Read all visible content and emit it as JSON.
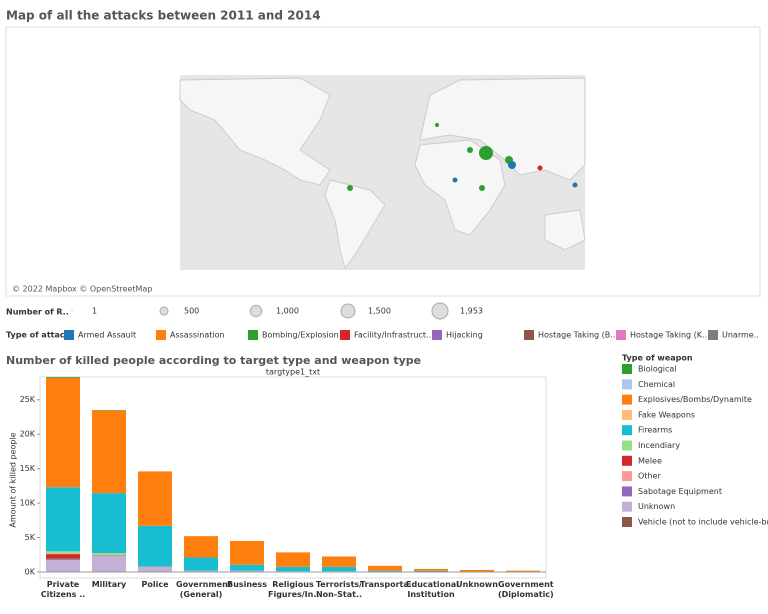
{
  "map": {
    "title": "Map of all the attacks between 2011 and 2014",
    "attribution": "© 2022 Mapbox © OpenStreetMap",
    "size_legend": {
      "label": "Number of R..",
      "values": [
        1,
        500,
        1000,
        1500,
        1953
      ],
      "value_labels": [
        "1",
        "500",
        "1,000",
        "1,500",
        "1,953"
      ]
    },
    "color_legend": {
      "label": "Type of attack",
      "items": [
        {
          "name": "Armed Assault",
          "color": "#1f77b4"
        },
        {
          "name": "Assassination",
          "color": "#ff7f0e"
        },
        {
          "name": "Bombing/Explosion",
          "color": "#2ca02c"
        },
        {
          "name": "Facility/Infrastruct..",
          "color": "#d62728"
        },
        {
          "name": "Hijacking",
          "color": "#9467bd"
        },
        {
          "name": "Hostage Taking (B..",
          "color": "#8c564b"
        },
        {
          "name": "Hostage Taking (K..",
          "color": "#e377c2"
        },
        {
          "name": "Unarme..",
          "color": "#7f7f7f"
        }
      ]
    }
  },
  "chart_data": {
    "type": "stacked_bar",
    "title": "Number of killed people according to target type and weapon type",
    "x_header": "targtype1_txt",
    "y_label": "Amount of killed people",
    "legend_title": "Type of weapon",
    "categories": [
      "Private Citizens ..",
      "Military",
      "Police",
      "Government (General)",
      "Business",
      "Religious Figures/In..",
      "Terrorists/ Non-Stat..",
      "Transporta..",
      "Educational Institution",
      "Unknown",
      "Government (Diplomatic)"
    ],
    "ylim": [
      0,
      28300
    ],
    "yticks": [
      {
        "value": 0,
        "label": "0K"
      },
      {
        "value": 5000,
        "label": "5K"
      },
      {
        "value": 10000,
        "label": "10K"
      },
      {
        "value": 15000,
        "label": "15K"
      },
      {
        "value": 20000,
        "label": "20K"
      },
      {
        "value": 25000,
        "label": "25K"
      }
    ],
    "series": [
      {
        "name": "Biological",
        "color": "#2ca02c",
        "values": [
          100,
          50,
          0,
          0,
          0,
          0,
          0,
          0,
          0,
          0,
          0
        ]
      },
      {
        "name": "Chemical",
        "color": "#aec7e8",
        "values": [
          50,
          0,
          0,
          0,
          0,
          0,
          0,
          0,
          0,
          0,
          0
        ]
      },
      {
        "name": "Explosives/Bombs/Dynamite",
        "color": "#ff7f0e",
        "values": [
          15900,
          12000,
          7900,
          3100,
          3450,
          2100,
          1500,
          700,
          280,
          250,
          150
        ]
      },
      {
        "name": "Fake Weapons",
        "color": "#ffbb78",
        "values": [
          0,
          0,
          0,
          0,
          0,
          0,
          0,
          0,
          0,
          0,
          0
        ]
      },
      {
        "name": "Firearms",
        "color": "#17becf",
        "values": [
          9300,
          8700,
          5900,
          1900,
          850,
          650,
          650,
          150,
          150,
          50,
          50
        ]
      },
      {
        "name": "Incendiary",
        "color": "#98df8a",
        "values": [
          300,
          300,
          0,
          0,
          0,
          0,
          0,
          0,
          0,
          0,
          0
        ]
      },
      {
        "name": "Melee",
        "color": "#d62728",
        "values": [
          600,
          50,
          0,
          0,
          0,
          0,
          0,
          0,
          0,
          0,
          0
        ]
      },
      {
        "name": "Other",
        "color": "#ff9896",
        "values": [
          100,
          0,
          0,
          0,
          0,
          0,
          0,
          0,
          0,
          0,
          0
        ]
      },
      {
        "name": "Sabotage Equipment",
        "color": "#9467bd",
        "values": [
          0,
          0,
          0,
          0,
          0,
          0,
          0,
          0,
          0,
          0,
          0
        ]
      },
      {
        "name": "Unknown",
        "color": "#c5b0d5",
        "values": [
          1800,
          2400,
          800,
          200,
          200,
          100,
          100,
          50,
          20,
          0,
          0
        ]
      },
      {
        "name": "Vehicle (not to include vehicle-bo..",
        "color": "#8c564b",
        "values": [
          200,
          0,
          0,
          0,
          0,
          0,
          0,
          0,
          0,
          0,
          0
        ]
      }
    ]
  }
}
